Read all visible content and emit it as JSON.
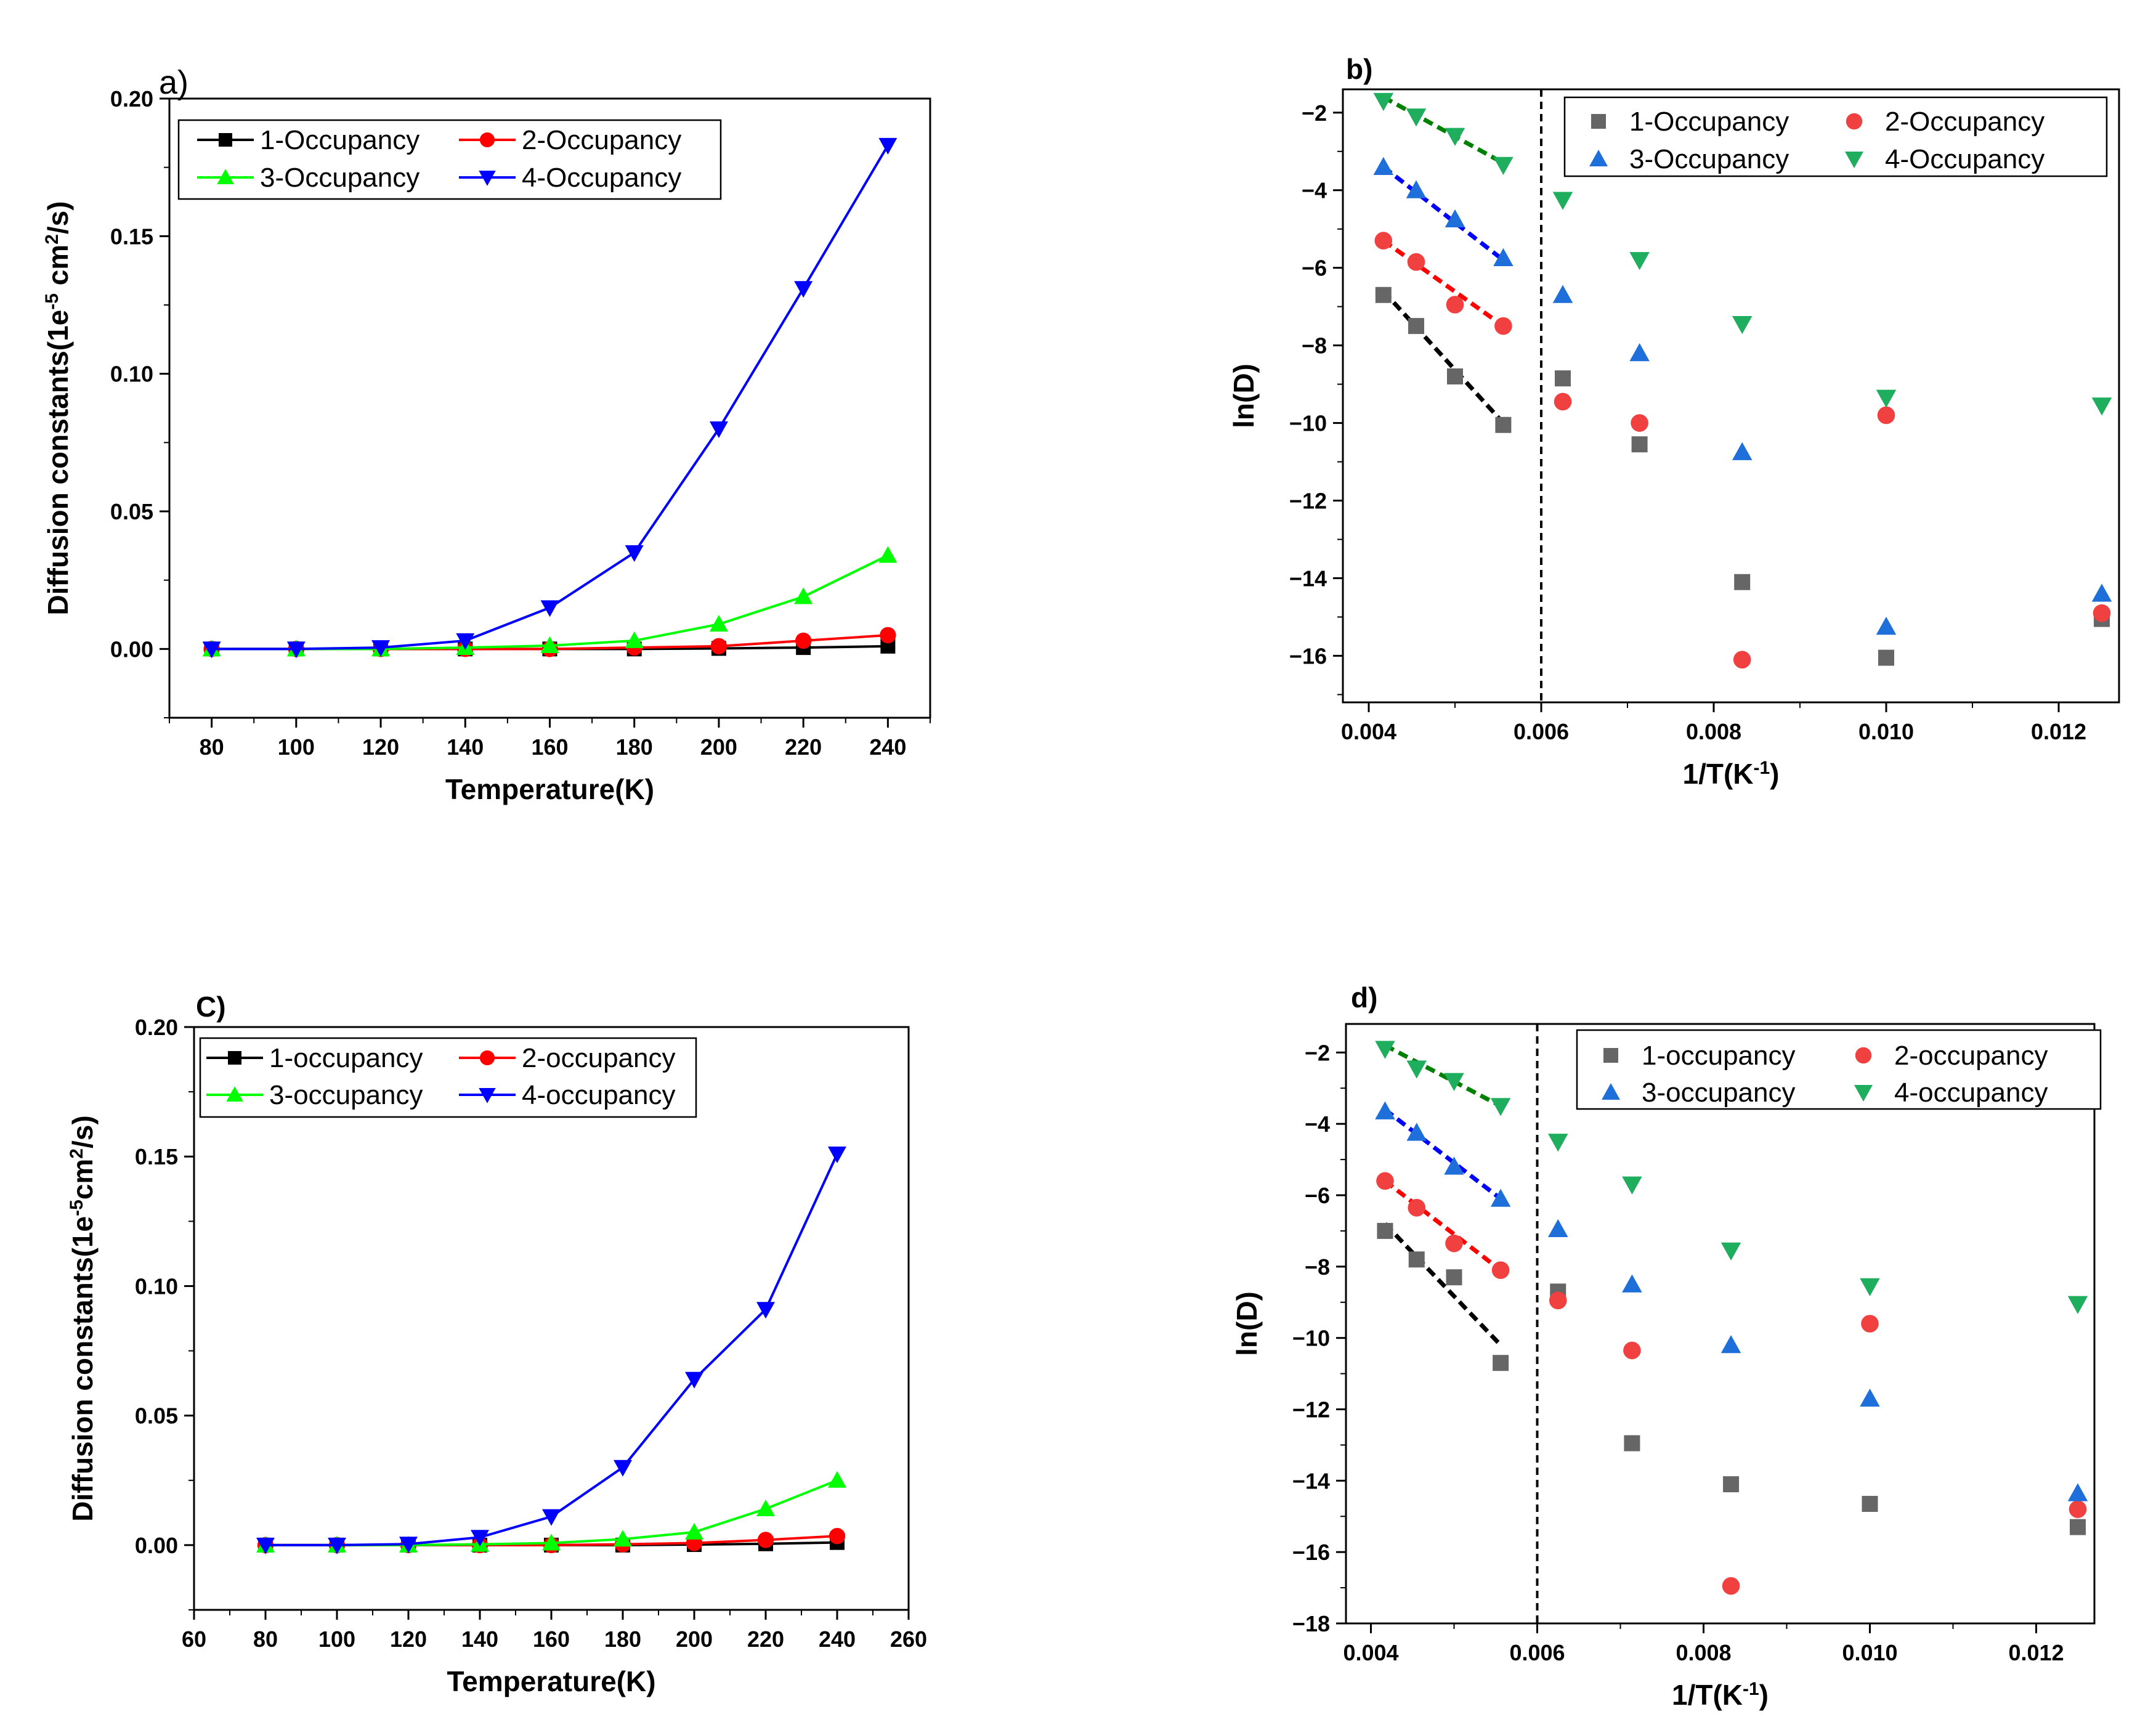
{
  "chart_data": [
    {
      "panel_label": "a)",
      "type": "line",
      "xlabel": "Temperature(K)",
      "ylabel": "Diffusion constants(1e-5 cm2/s)",
      "ylabel_parts": [
        "Diffusion constants(1e",
        "-5",
        " cm",
        "2",
        "/s)"
      ],
      "xlim": [
        70,
        250
      ],
      "ylim": [
        -0.025,
        0.2
      ],
      "xticks": [
        80,
        100,
        120,
        140,
        160,
        180,
        200,
        220,
        240
      ],
      "yticks": [
        0.0,
        0.05,
        0.1,
        0.15,
        0.2
      ],
      "ytick_labels": [
        "0.00",
        "0.05",
        "0.10",
        "0.15",
        "0.20"
      ],
      "legend_position": "top-left",
      "x": [
        80,
        100,
        120,
        140,
        160,
        180,
        200,
        220,
        240
      ],
      "series": [
        {
          "name": "1-Occupancy",
          "color": "#000000",
          "marker": "square",
          "values": [
            0,
            0,
            0,
            0,
            0,
            0,
            0.0002,
            0.0005,
            0.001
          ]
        },
        {
          "name": "2-Occupancy",
          "color": "#ff0000",
          "marker": "circle",
          "values": [
            0,
            0,
            0,
            0,
            0,
            0.0005,
            0.001,
            0.003,
            0.005
          ]
        },
        {
          "name": "3-Occupancy",
          "color": "#00ff00",
          "marker": "triangle-up",
          "values": [
            0,
            0,
            0,
            0.0005,
            0.0012,
            0.003,
            0.009,
            0.019,
            0.034
          ]
        },
        {
          "name": "4-Occupancy",
          "color": "#0000ff",
          "marker": "triangle-down",
          "values": [
            0,
            0,
            0.0005,
            0.003,
            0.015,
            0.035,
            0.08,
            0.131,
            0.183
          ]
        }
      ]
    },
    {
      "panel_label": "b)",
      "type": "scatter",
      "xlabel": "1/T(K-1)",
      "xlabel_parts": [
        "1/T(K",
        "-1",
        ")"
      ],
      "ylabel": "ln(D)",
      "xlim": [
        0.0037,
        0.0127
      ],
      "ylim": [
        -17.2,
        -1.4
      ],
      "xticks": [
        0.004,
        0.006,
        0.008,
        0.01,
        0.012
      ],
      "xtick_labels": [
        "0.004",
        "0.006",
        "0.008",
        "0.010",
        "0.012"
      ],
      "yticks": [
        -16,
        -14,
        -12,
        -10,
        -8,
        -6,
        -4,
        -2
      ],
      "vline_x": 0.006,
      "legend_position": "top-right",
      "x": [
        0.00417,
        0.00455,
        0.005,
        0.00556,
        0.00625,
        0.00714,
        0.00833,
        0.01,
        0.0125
      ],
      "series": [
        {
          "name": "1-Occupancy",
          "color": "#666666",
          "marker": "square",
          "values": [
            -6.7,
            -7.5,
            -8.8,
            -10.05,
            -8.85,
            -10.55,
            -14.1,
            -16.05,
            -15.05
          ]
        },
        {
          "name": "2-Occupancy",
          "color": "#f04040",
          "marker": "circle",
          "values": [
            -5.3,
            -5.85,
            -6.95,
            -7.5,
            -9.45,
            -10.0,
            -16.1,
            -9.8,
            -14.9
          ]
        },
        {
          "name": "3-Occupancy",
          "color": "#1e6fd9",
          "marker": "triangle-up",
          "values": [
            -3.4,
            -4.0,
            -4.75,
            -5.75,
            -6.7,
            -8.2,
            -10.75,
            -15.25,
            -14.4
          ]
        },
        {
          "name": "4-Occupancy",
          "color": "#1fae5e",
          "marker": "triangle-down",
          "values": [
            -1.7,
            -2.1,
            -2.6,
            -3.35,
            -4.25,
            -5.8,
            -7.45,
            -9.35,
            -9.55
          ]
        }
      ],
      "fits": [
        {
          "color": "#000000",
          "x": [
            0.00417,
            0.00556
          ],
          "y": [
            -6.6,
            -10.0
          ]
        },
        {
          "color": "#ff0000",
          "x": [
            0.00417,
            0.00556
          ],
          "y": [
            -5.3,
            -7.5
          ]
        },
        {
          "color": "#0000ff",
          "x": [
            0.00417,
            0.00556
          ],
          "y": [
            -3.4,
            -5.8
          ]
        },
        {
          "color": "#008000",
          "x": [
            0.00417,
            0.00556
          ],
          "y": [
            -1.6,
            -3.3
          ]
        }
      ]
    },
    {
      "panel_label": "C)",
      "type": "line",
      "xlabel": "Temperature(K)",
      "ylabel": "Diffusion constants(1e-5cm2/s)",
      "ylabel_parts": [
        "Diffusion constants(1e",
        "-5",
        "cm",
        "2",
        "/s)"
      ],
      "xlim": [
        60,
        260
      ],
      "ylim": [
        -0.025,
        0.2
      ],
      "xticks": [
        60,
        80,
        100,
        120,
        140,
        160,
        180,
        200,
        220,
        240,
        260
      ],
      "yticks": [
        0.0,
        0.05,
        0.1,
        0.15,
        0.2
      ],
      "ytick_labels": [
        "0.00",
        "0.05",
        "0.10",
        "0.15",
        "0.20"
      ],
      "legend_position": "top-left",
      "x": [
        80,
        100,
        120,
        140,
        160,
        180,
        200,
        220,
        240
      ],
      "series": [
        {
          "name": "1-occupancy",
          "color": "#000000",
          "marker": "square",
          "values": [
            0,
            0,
            0,
            0,
            0,
            0,
            0.0002,
            0.0005,
            0.001
          ]
        },
        {
          "name": "2-occupancy",
          "color": "#ff0000",
          "marker": "circle",
          "values": [
            0,
            0,
            0,
            0,
            0,
            0.0003,
            0.0008,
            0.002,
            0.0035
          ]
        },
        {
          "name": "3-occupancy",
          "color": "#00ff00",
          "marker": "triangle-up",
          "values": [
            0,
            0,
            0,
            0.0003,
            0.0008,
            0.0023,
            0.005,
            0.014,
            0.025
          ]
        },
        {
          "name": "4-occupancy",
          "color": "#0000ff",
          "marker": "triangle-down",
          "values": [
            0,
            0,
            0.0004,
            0.003,
            0.011,
            0.03,
            0.064,
            0.091,
            0.151
          ]
        }
      ]
    },
    {
      "panel_label": "d)",
      "type": "scatter",
      "xlabel": "1/T(K-1)",
      "xlabel_parts": [
        "1/T(K",
        "-1",
        ")"
      ],
      "ylabel": "ln(D)",
      "xlim": [
        0.0037,
        0.0127
      ],
      "ylim": [
        -18,
        -1.2
      ],
      "xticks": [
        0.004,
        0.006,
        0.008,
        0.01,
        0.012
      ],
      "xtick_labels": [
        "0.004",
        "0.006",
        "0.008",
        "0.010",
        "0.012"
      ],
      "yticks": [
        -18,
        -16,
        -14,
        -12,
        -10,
        -8,
        -6,
        -4,
        -2
      ],
      "vline_x": 0.006,
      "legend_position": "top-right",
      "x": [
        0.00417,
        0.00455,
        0.005,
        0.00556,
        0.00625,
        0.00714,
        0.00833,
        0.01,
        0.0125
      ],
      "series": [
        {
          "name": "1-occupancy",
          "color": "#666666",
          "marker": "square",
          "values": [
            -7.0,
            -7.8,
            -8.3,
            -10.7,
            -8.7,
            -12.95,
            -14.1,
            -14.65,
            -15.3
          ]
        },
        {
          "name": "2-occupancy",
          "color": "#f04040",
          "marker": "circle",
          "values": [
            -5.6,
            -6.35,
            -7.35,
            -8.1,
            -8.95,
            -10.35,
            -16.95,
            -9.6,
            -14.8
          ]
        },
        {
          "name": "3-occupancy",
          "color": "#1e6fd9",
          "marker": "triangle-up",
          "values": [
            -3.65,
            -4.25,
            -5.2,
            -6.1,
            -6.95,
            -8.5,
            -10.2,
            -11.7,
            -14.35
          ]
        },
        {
          "name": "4-occupancy",
          "color": "#1fae5e",
          "marker": "triangle-down",
          "values": [
            -1.9,
            -2.45,
            -2.8,
            -3.5,
            -4.5,
            -5.7,
            -7.55,
            -8.55,
            -9.05
          ]
        }
      ],
      "fits": [
        {
          "color": "#000000",
          "x": [
            0.00417,
            0.00556
          ],
          "y": [
            -6.8,
            -10.2
          ]
        },
        {
          "color": "#ff0000",
          "x": [
            0.00417,
            0.00556
          ],
          "y": [
            -5.6,
            -8.1
          ]
        },
        {
          "color": "#0000ff",
          "x": [
            0.00417,
            0.00556
          ],
          "y": [
            -3.6,
            -6.1
          ]
        },
        {
          "color": "#008000",
          "x": [
            0.00417,
            0.00556
          ],
          "y": [
            -1.8,
            -3.5
          ]
        }
      ]
    }
  ]
}
